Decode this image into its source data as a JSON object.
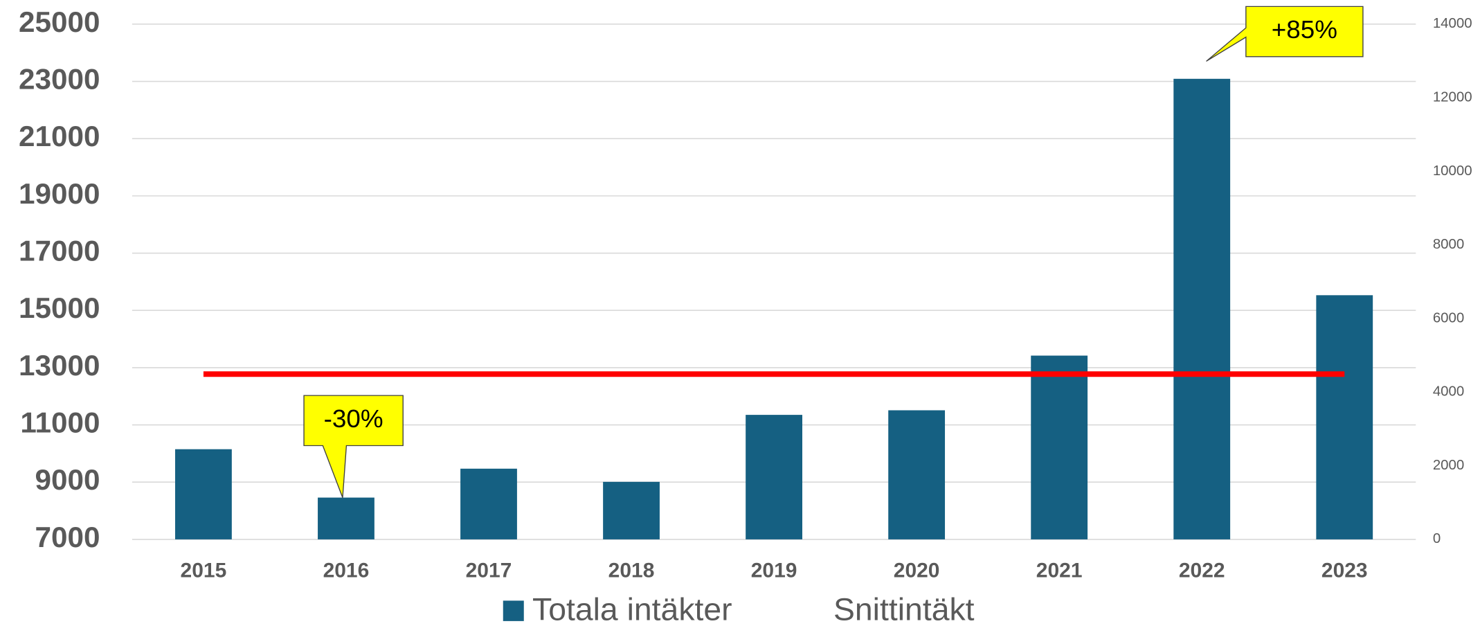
{
  "chart_data": {
    "type": "bar",
    "categories": [
      "2015",
      "2016",
      "2017",
      "2018",
      "2019",
      "2020",
      "2021",
      "2022",
      "2023"
    ],
    "series": [
      {
        "name": "Totala intäkter",
        "color": "#156082",
        "values": [
          10150,
          8460,
          9470,
          9010,
          11350,
          11510,
          13420,
          23090,
          15530
        ]
      },
      {
        "name": "Snittintäkt",
        "type": "line",
        "axis": "y2",
        "color": "#ff0000",
        "values": [
          4490,
          4490,
          4490,
          4490,
          4490,
          4490,
          4490,
          4490,
          4490
        ]
      }
    ],
    "ylim": [
      7000,
      25000
    ],
    "yticks": [
      7000,
      9000,
      11000,
      13000,
      15000,
      17000,
      19000,
      21000,
      23000,
      25000
    ],
    "y2lim": [
      0,
      14000
    ],
    "y2ticks": [
      0,
      2000,
      4000,
      6000,
      8000,
      10000,
      12000,
      14000
    ],
    "grid": true,
    "annotations": [
      "-30%",
      "+85%"
    ]
  }
}
